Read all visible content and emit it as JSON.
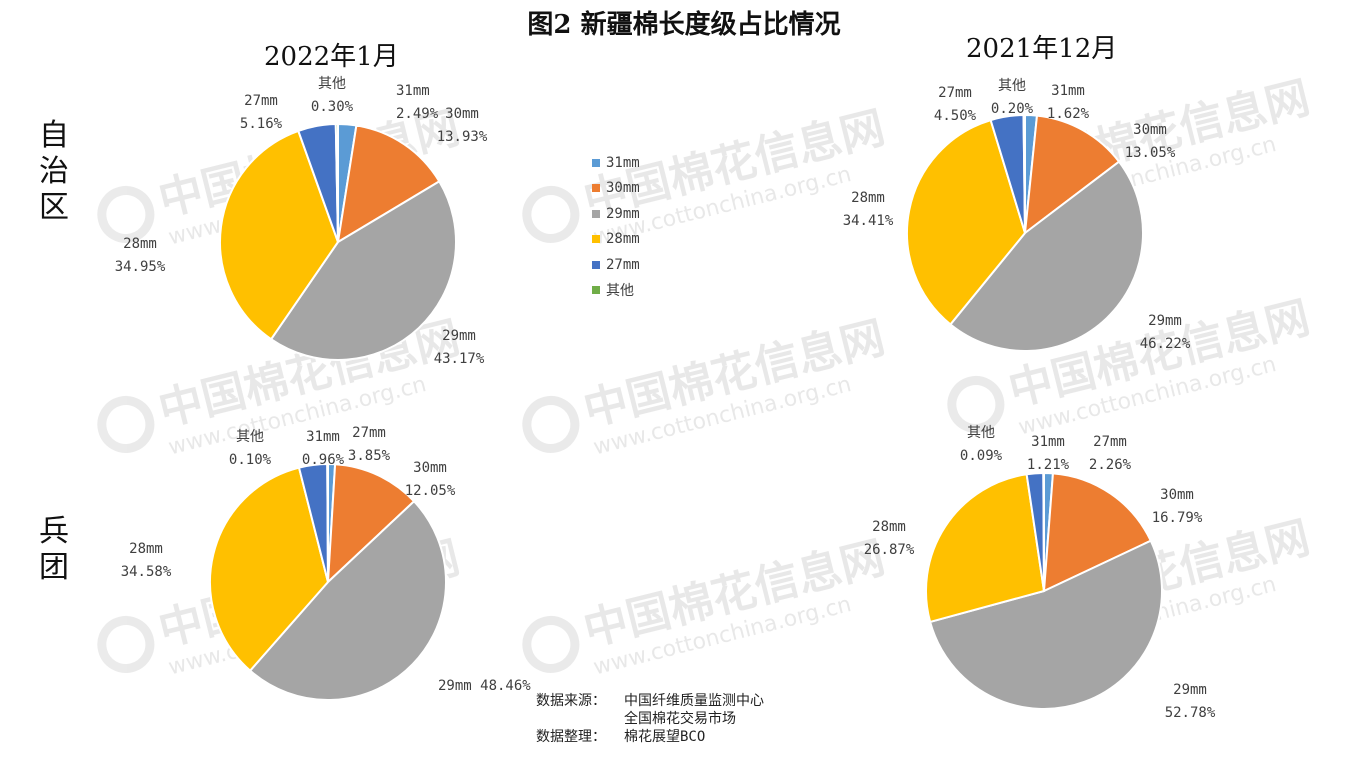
{
  "title": "图2 新疆棉长度级占比情况",
  "column_titles": [
    "2022年1月",
    "2021年12月"
  ],
  "row_labels": [
    "自治区",
    "兵团"
  ],
  "watermark": {
    "text_cn": "中国棉花信息网",
    "text_url": "www.cottonchina.org.cn"
  },
  "legend": [
    {
      "label": "31mm",
      "color": "#5B9BD5"
    },
    {
      "label": "30mm",
      "color": "#ED7D31"
    },
    {
      "label": "29mm",
      "color": "#A5A5A5"
    },
    {
      "label": "28mm",
      "color": "#FFC000"
    },
    {
      "label": "27mm",
      "color": "#4472C4"
    },
    {
      "label": "其他",
      "color": "#70AD47"
    }
  ],
  "source": {
    "label1": "数据来源：",
    "lines": [
      "中国纤维质量监测中心",
      "全国棉花交易市场"
    ],
    "label2": "数据整理：",
    "compiler": "棉花展望BCO"
  },
  "chart_data": [
    {
      "type": "pie",
      "group": "自治区",
      "period": "2022年1月",
      "categories": [
        "31mm",
        "30mm",
        "29mm",
        "28mm",
        "27mm",
        "其他"
      ],
      "values": [
        2.49,
        13.93,
        43.17,
        34.95,
        5.16,
        0.3
      ],
      "labels": [
        "2.49%",
        "13.93%",
        "43.17%",
        "34.95%",
        "5.16%",
        "0.30%"
      ]
    },
    {
      "type": "pie",
      "group": "自治区",
      "period": "2021年12月",
      "categories": [
        "31mm",
        "30mm",
        "29mm",
        "28mm",
        "27mm",
        "其他"
      ],
      "values": [
        1.62,
        13.05,
        46.22,
        34.41,
        4.5,
        0.2
      ],
      "labels": [
        "1.62%",
        "13.05%",
        "46.22%",
        "34.41%",
        "4.50%",
        "0.20%"
      ]
    },
    {
      "type": "pie",
      "group": "兵团",
      "period": "2022年1月",
      "categories": [
        "31mm",
        "30mm",
        "29mm",
        "28mm",
        "27mm",
        "其他"
      ],
      "values": [
        0.96,
        12.05,
        48.46,
        34.58,
        3.85,
        0.1
      ],
      "labels": [
        "0.96%",
        "12.05%",
        "48.46%",
        "34.58%",
        "3.85%",
        "0.10%"
      ]
    },
    {
      "type": "pie",
      "group": "兵团",
      "period": "2021年12月",
      "categories": [
        "31mm",
        "30mm",
        "29mm",
        "28mm",
        "27mm",
        "其他"
      ],
      "values": [
        1.21,
        16.79,
        52.78,
        26.87,
        2.26,
        0.09
      ],
      "labels": [
        "1.21%",
        "16.79%",
        "52.78%",
        "26.87%",
        "2.26%",
        "0.09%"
      ]
    }
  ]
}
